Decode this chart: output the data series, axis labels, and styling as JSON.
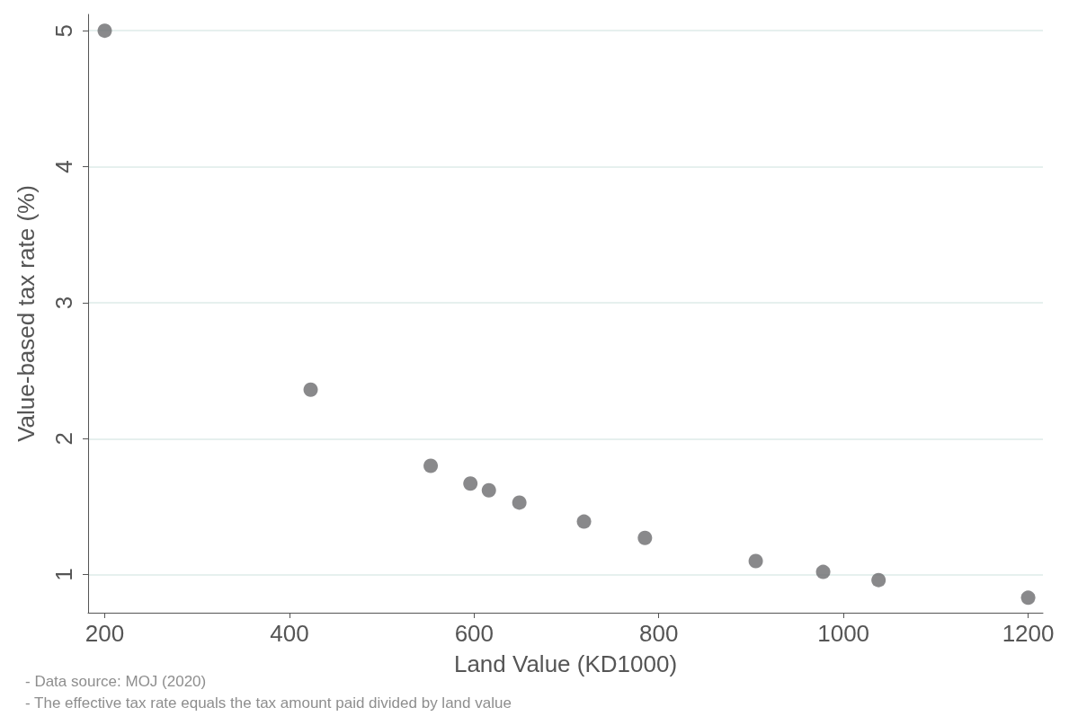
{
  "chart_data": {
    "type": "scatter",
    "xlabel": "Land Value (KD1000)",
    "ylabel": "Value-based tax rate (%)",
    "x": [
      200,
      423,
      553,
      596,
      616,
      649,
      719,
      785,
      905,
      978,
      1038,
      1200
    ],
    "values": [
      5,
      2.36,
      1.8,
      1.67,
      1.62,
      1.53,
      1.39,
      1.27,
      1.1,
      1.02,
      0.96,
      0.83
    ],
    "color": "#6b6b6e",
    "marker": "circle",
    "xlim": [
      182,
      1216
    ],
    "xticks": [
      200,
      400,
      600,
      800,
      1000,
      1200
    ],
    "ylim": [
      0.72,
      5.12
    ],
    "yticks": [
      1,
      2,
      3,
      4,
      5
    ],
    "grid": "y",
    "annotations": [
      "- Data source: MOJ (2020)",
      "- The effective tax rate equals the tax amount paid divided by land value"
    ]
  }
}
